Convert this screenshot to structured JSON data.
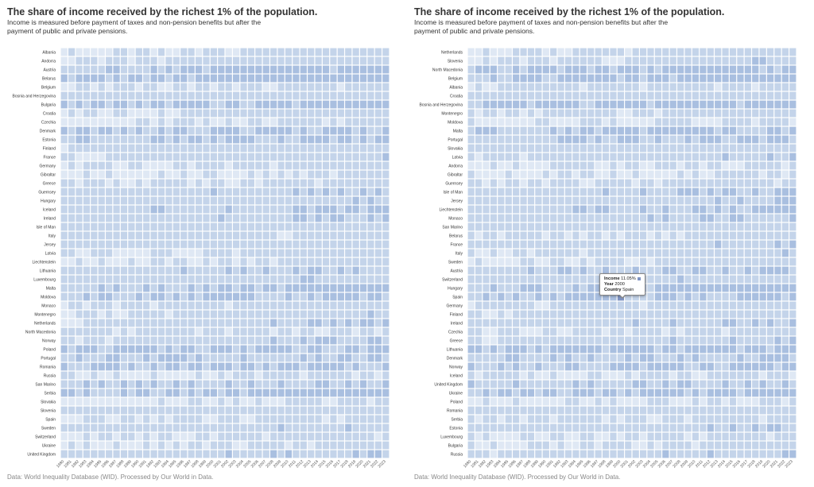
{
  "panels": [
    {
      "title": "The share of income received by the richest 1% of the population.",
      "subtitle": "Income is measured before payment of taxes and non-pension benefits but after the payment of public and private pensions.",
      "source": "Data: World Inequality Database (WID). Processed by Our World in Data."
    },
    {
      "title": "The share of income received by the richest 1% of the population.",
      "subtitle": "Income is measured before payment of taxes and non-pension benefits but after the payment of public and private pensions.",
      "source": "Data: World Inequality Database (WID). Processed by Our World in Data.",
      "tooltip": {
        "income_label": "Income",
        "income_value": "11.05%",
        "year_label": "Year",
        "year_value": "2000",
        "country_label": "Country",
        "country_value": "Spain"
      }
    }
  ],
  "chart_data": [
    {
      "type": "heatmap",
      "title": "The share of income received by the richest 1% of the population.",
      "x": [
        1980,
        1981,
        1982,
        1983,
        1984,
        1985,
        1986,
        1987,
        1988,
        1989,
        1990,
        1991,
        1992,
        1993,
        1994,
        1995,
        1996,
        1997,
        1998,
        1999,
        2000,
        2001,
        2002,
        2003,
        2004,
        2005,
        2006,
        2007,
        2008,
        2009,
        2010,
        2011,
        2012,
        2013,
        2014,
        2015,
        2016,
        2017,
        2018,
        2019,
        2020,
        2021,
        2022,
        2023
      ],
      "y": [
        "Albania",
        "Andorra",
        "Austria",
        "Belarus",
        "Belgium",
        "Bosnia and Herzegovina",
        "Bulgaria",
        "Croatia",
        "Czechia",
        "Denmark",
        "Estonia",
        "Finland",
        "France",
        "Germany",
        "Gibraltar",
        "Greece",
        "Guernsey",
        "Hungary",
        "Iceland",
        "Ireland",
        "Isle of Man",
        "Italy",
        "Jersey",
        "Latvia",
        "Liechtenstein",
        "Lithuania",
        "Luxembourg",
        "Malta",
        "Moldova",
        "Monaco",
        "Montenegro",
        "Netherlands",
        "North Macedonia",
        "Norway",
        "Poland",
        "Portugal",
        "Romania",
        "Russia",
        "San Marino",
        "Serbia",
        "Slovakia",
        "Slovenia",
        "Spain",
        "Sweden",
        "Switzerland",
        "Ukraine",
        "United Kingdom"
      ],
      "value_unit": "% of income",
      "color_scale": [
        "#f3f7fc",
        "#dfe8f4",
        "#c4d4ea",
        "#a9bfe0",
        "#8e9fcf",
        "#8a73bd",
        "#7a44a6",
        "#4a0058"
      ]
    },
    {
      "type": "heatmap",
      "title": "The share of income received by the richest 1% of the population.",
      "x": [
        1980,
        1981,
        1982,
        1983,
        1984,
        1985,
        1986,
        1987,
        1988,
        1989,
        1990,
        1991,
        1992,
        1993,
        1994,
        1995,
        1996,
        1997,
        1998,
        1999,
        2000,
        2001,
        2002,
        2003,
        2004,
        2005,
        2006,
        2007,
        2008,
        2009,
        2010,
        2011,
        2012,
        2013,
        2014,
        2015,
        2016,
        2017,
        2018,
        2019,
        2020,
        2021,
        2022,
        2023
      ],
      "y": [
        "Netherlands",
        "Slovenia",
        "North Macedonia",
        "Belgium",
        "Albania",
        "Croatia",
        "Bosnia and Herzegovina",
        "Montenegro",
        "Moldova",
        "Malta",
        "Portugal",
        "Slovakia",
        "Latvia",
        "Andorra",
        "Gibraltar",
        "Guernsey",
        "Isle of Man",
        "Jersey",
        "Liechtenstein",
        "Monaco",
        "San Marino",
        "Belarus",
        "France",
        "Italy",
        "Sweden",
        "Austria",
        "Switzerland",
        "Hungary",
        "Spain",
        "Germany",
        "Finland",
        "Ireland",
        "Czechia",
        "Greece",
        "Lithuania",
        "Denmark",
        "Norway",
        "Iceland",
        "United Kingdom",
        "Ukraine",
        "Poland",
        "Romania",
        "Serbia",
        "Estonia",
        "Luxembourg",
        "Bulgaria",
        "Russia"
      ],
      "value_unit": "% of income",
      "highlight": {
        "country": "Spain",
        "year": 2000,
        "value": 11.05
      },
      "color_scale": [
        "#f3f7fc",
        "#dfe8f4",
        "#c4d4ea",
        "#a9bfe0",
        "#8e9fcf",
        "#8a73bd",
        "#7a44a6",
        "#4a0058"
      ]
    }
  ]
}
